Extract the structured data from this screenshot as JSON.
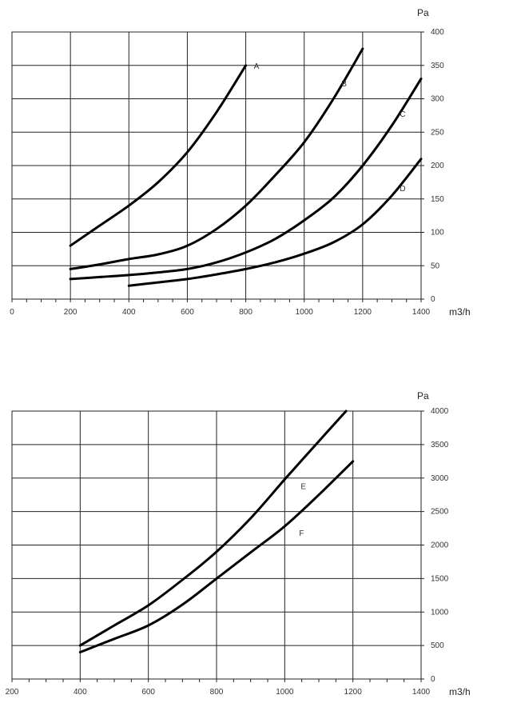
{
  "chart_data": [
    {
      "type": "line",
      "x_unit": "m3/h",
      "y_unit": "Pa",
      "xlim": [
        0,
        1400
      ],
      "ylim": [
        0,
        400
      ],
      "x_ticks": [
        0,
        200,
        400,
        600,
        800,
        1000,
        1200,
        1400
      ],
      "y_ticks": [
        0,
        50,
        100,
        150,
        200,
        250,
        300,
        350,
        400
      ],
      "grid": true,
      "series": [
        {
          "name": "A",
          "x": [
            200,
            300,
            400,
            500,
            600,
            700,
            800
          ],
          "y": [
            80,
            110,
            140,
            175,
            220,
            280,
            350
          ]
        },
        {
          "name": "B",
          "x": [
            200,
            300,
            400,
            500,
            600,
            700,
            800,
            900,
            1000,
            1100,
            1200
          ],
          "y": [
            45,
            52,
            60,
            67,
            80,
            105,
            140,
            185,
            235,
            300,
            375
          ]
        },
        {
          "name": "C",
          "x": [
            200,
            300,
            400,
            500,
            600,
            700,
            800,
            900,
            1000,
            1100,
            1200,
            1300,
            1400
          ],
          "y": [
            30,
            33,
            36,
            40,
            45,
            55,
            70,
            90,
            118,
            152,
            200,
            260,
            330
          ]
        },
        {
          "name": "D",
          "x": [
            400,
            500,
            600,
            700,
            800,
            900,
            1000,
            1100,
            1200,
            1300,
            1400
          ],
          "y": [
            20,
            25,
            30,
            37,
            45,
            55,
            68,
            85,
            112,
            155,
            210
          ]
        }
      ]
    },
    {
      "type": "line",
      "x_unit": "m3/h",
      "y_unit": "Pa",
      "xlim": [
        200,
        1400
      ],
      "ylim": [
        0,
        4000
      ],
      "x_ticks": [
        200,
        400,
        600,
        800,
        1000,
        1200,
        1400
      ],
      "y_ticks": [
        0,
        500,
        1000,
        1500,
        2000,
        2500,
        3000,
        3500,
        4000
      ],
      "grid": true,
      "series": [
        {
          "name": "E",
          "x": [
            400,
            500,
            600,
            700,
            800,
            900,
            1000,
            1100,
            1180
          ],
          "y": [
            500,
            800,
            1100,
            1480,
            1900,
            2400,
            2980,
            3550,
            4000
          ]
        },
        {
          "name": "F",
          "x": [
            400,
            500,
            600,
            700,
            800,
            900,
            1000,
            1100,
            1200
          ],
          "y": [
            400,
            600,
            800,
            1110,
            1500,
            1890,
            2280,
            2750,
            3250
          ]
        }
      ]
    }
  ]
}
